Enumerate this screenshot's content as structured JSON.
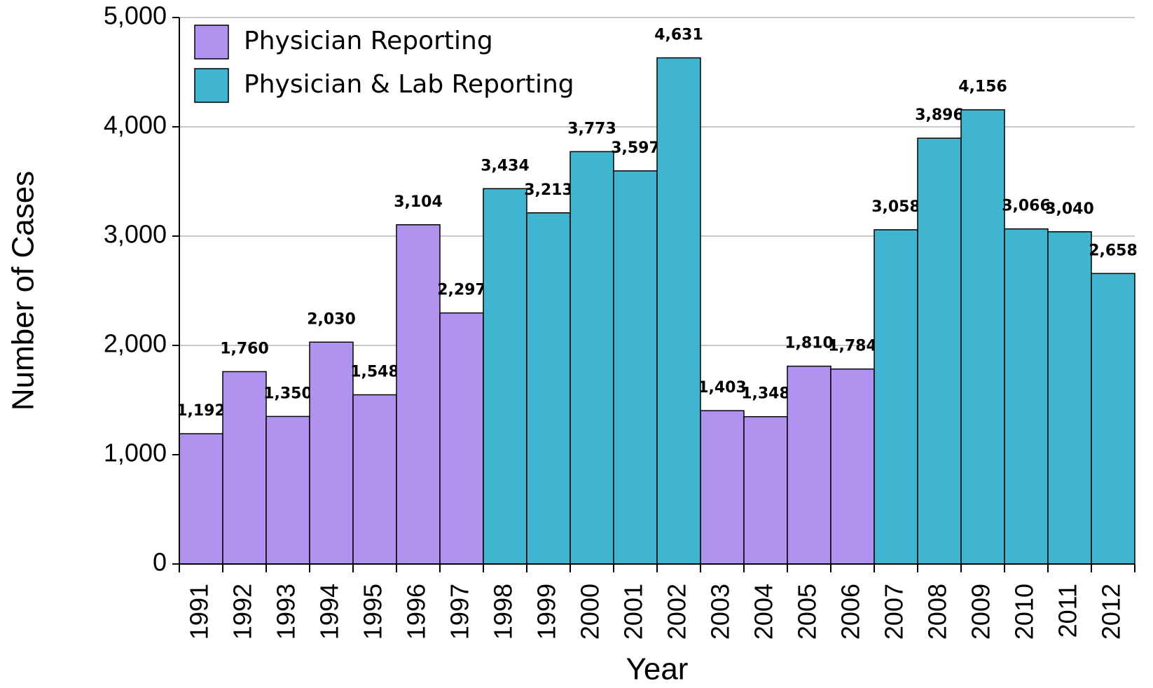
{
  "chart_data": {
    "type": "bar",
    "y_label": "Number of Cases",
    "x_label": "Year",
    "categories": [
      "1991",
      "1992",
      "1993",
      "1994",
      "1995",
      "1996",
      "1997",
      "1998",
      "1999",
      "2000",
      "2001",
      "2002",
      "2003",
      "2004",
      "2005",
      "2006",
      "2007",
      "2008",
      "2009",
      "2010",
      "2011",
      "2012"
    ],
    "series": [
      {
        "name": "Physician Reporting",
        "color": "#b093ef",
        "values": [
          1192,
          1760,
          1350,
          2030,
          1548,
          3104,
          2297,
          null,
          null,
          null,
          null,
          null,
          1403,
          1348,
          1810,
          1784,
          null,
          null,
          null,
          null,
          null,
          null
        ],
        "value_labels": [
          "1,192",
          "1,760",
          "1,350",
          "2,030",
          "1,548",
          "3,104",
          "2,297",
          null,
          null,
          null,
          null,
          null,
          "1,403",
          "1,348",
          "1,810",
          "1,784",
          null,
          null,
          null,
          null,
          null,
          null
        ]
      },
      {
        "name": "Physician & Lab Reporting",
        "color": "#3fb5cf",
        "values": [
          null,
          null,
          null,
          null,
          null,
          null,
          null,
          3434,
          3213,
          3773,
          3597,
          4631,
          null,
          null,
          null,
          null,
          3058,
          3896,
          4156,
          3066,
          3040,
          2658
        ],
        "value_labels": [
          null,
          null,
          null,
          null,
          null,
          null,
          null,
          "3,434",
          "3,213",
          "3,773",
          "3,597",
          "4,631",
          null,
          null,
          null,
          null,
          "3,058",
          "3,896",
          "4,156",
          "3,066",
          "3,040",
          "2,658"
        ]
      }
    ],
    "ylim": [
      0,
      5000
    ],
    "yticks": [
      0,
      {
        "value": 1000,
        "label": "1,000"
      },
      {
        "value": 2000,
        "label": "2,000"
      },
      {
        "value": 3000,
        "label": "3,000"
      },
      {
        "value": 4000,
        "label": "4,000"
      },
      {
        "value": 5000,
        "label": "5,000"
      }
    ],
    "grid": true,
    "legend": "upper left"
  }
}
